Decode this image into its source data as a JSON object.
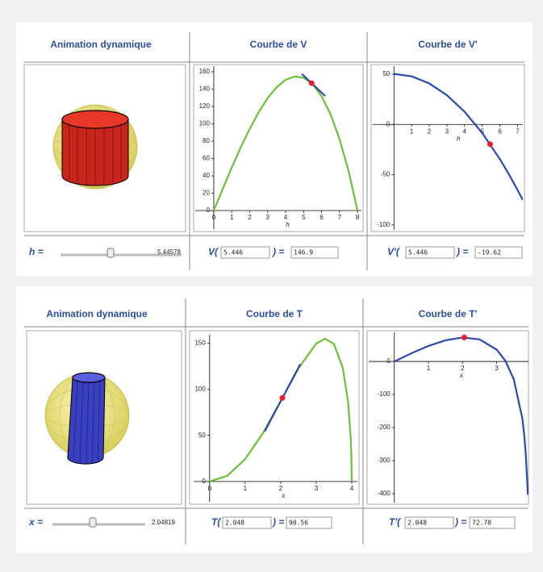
{
  "panels": [
    {
      "headers": [
        "Animation dynamique",
        "Courbe de V",
        "Courbe de V'"
      ],
      "slider": {
        "label": "h =",
        "value": "5.44578"
      },
      "evals": [
        {
          "func": "V(",
          "arg": "5.446",
          "eq": ") =",
          "result": "146.9"
        },
        {
          "func": "V'(",
          "arg": "5.446",
          "eq": ") =",
          "result": "-19.62"
        }
      ],
      "plots": [
        {
          "type": "line",
          "xlabel": "h",
          "xlim": [
            -1.03,
            8.22
          ],
          "ylim": [
            -21.4,
            166.5
          ],
          "xticks": [
            0,
            1,
            2,
            3,
            4,
            5,
            6,
            7,
            8
          ],
          "yticks": [
            0,
            20,
            40,
            60,
            80,
            100,
            120,
            140,
            160
          ],
          "series": [
            {
              "color": "#6cc03a",
              "x": [
                0,
                0.5,
                1,
                1.5,
                2,
                2.5,
                3,
                3.5,
                4,
                4.5,
                5,
                5.5,
                6,
                6.5,
                7,
                7.5,
                8
              ],
              "values": [
                0,
                25.0,
                49.5,
                72.7,
                94.2,
                113.4,
                129.6,
                142.3,
                150.8,
                154.6,
                153.2,
                145.8,
                131.9,
                111.0,
                82.5,
                45.7,
                0
              ]
            },
            {
              "color": "#2c4aa6",
              "x": [
                4.9,
                6.2
              ],
              "values": [
                157.6,
                132.1
              ]
            }
          ],
          "point": {
            "color": "#e8202a",
            "x": 5.446,
            "value": 146.9
          }
        },
        {
          "type": "line",
          "xlabel": "h",
          "xlim": [
            -1.2,
            7.3
          ],
          "ylim": [
            -105,
            58
          ],
          "xticks": [
            1,
            2,
            3,
            4,
            5,
            6,
            7
          ],
          "yticks": [
            -100,
            -50,
            0,
            50
          ],
          "series": [
            {
              "color": "#2c4aa6",
              "x": [
                0,
                1,
                2,
                3,
                4,
                5,
                6,
                6.5,
                7,
                7.3
              ],
              "values": [
                50.27,
                47.9,
                40.8,
                29.1,
                12.6,
                -8.6,
                -34.6,
                -49.3,
                -65.2,
                -75.3
              ]
            }
          ],
          "point": {
            "color": "#e8202a",
            "x": 5.446,
            "value": -19.62
          }
        }
      ]
    },
    {
      "headers": [
        "Animation dynamique",
        "Courbe de T",
        "Courbe de T'"
      ],
      "slider": {
        "label": "x =",
        "value": "2.04819"
      },
      "evals": [
        {
          "func": "T(",
          "arg": "2.048",
          "eq": ") =",
          "result": "90.56"
        },
        {
          "func": "T'(",
          "arg": "2.048",
          "eq": ") =",
          "result": "72.78"
        }
      ],
      "plots": [
        {
          "type": "line",
          "xlabel": "x",
          "xlim": [
            -0.45,
            4.16
          ],
          "ylim": [
            -22,
            159
          ],
          "xticks": [
            0,
            1,
            2,
            3,
            4
          ],
          "yticks": [
            0,
            50,
            100,
            150
          ],
          "series": [
            {
              "color": "#6cc03a",
              "x": [
                0,
                0.5,
                1,
                1.5,
                2,
                2.5,
                3,
                3.25,
                3.5,
                3.75,
                3.9,
                3.97,
                3.99,
                4
              ],
              "values": [
                0,
                6.23,
                24.3,
                52.4,
                87.1,
                122.6,
                149.6,
                154.8,
                149.0,
                123.0,
                85.0,
                48.4,
                28.3,
                0
              ]
            },
            {
              "color": "#2c4aa6",
              "x": [
                1.55,
                2.55
              ],
              "values": [
                54.3,
                127.1
              ]
            }
          ],
          "point": {
            "color": "#e8202a",
            "x": 2.048,
            "value": 90.56
          }
        },
        {
          "type": "line",
          "xlabel": "x",
          "xlim": [
            -0.75,
            3.93
          ],
          "ylim": [
            -427,
            88
          ],
          "xticks": [
            1,
            2,
            3
          ],
          "yticks": [
            -400,
            -300,
            -200,
            -100,
            0
          ],
          "series": [
            {
              "color": "#2c4aa6",
              "x": [
                0,
                0.5,
                1,
                1.5,
                2,
                2.5,
                3,
                3.25,
                3.5,
                3.75,
                3.8,
                3.85,
                3.9,
                3.91
              ],
              "values": [
                0,
                24.7,
                47.0,
                64.2,
                72.6,
                66.7,
                35.6,
                2.7,
                -54.0,
                -172.5,
                -216.4,
                -278.0,
                -375.7,
                -403
              ]
            }
          ],
          "point": {
            "color": "#e8202a",
            "x": 2.048,
            "value": 72.78
          }
        }
      ]
    }
  ]
}
